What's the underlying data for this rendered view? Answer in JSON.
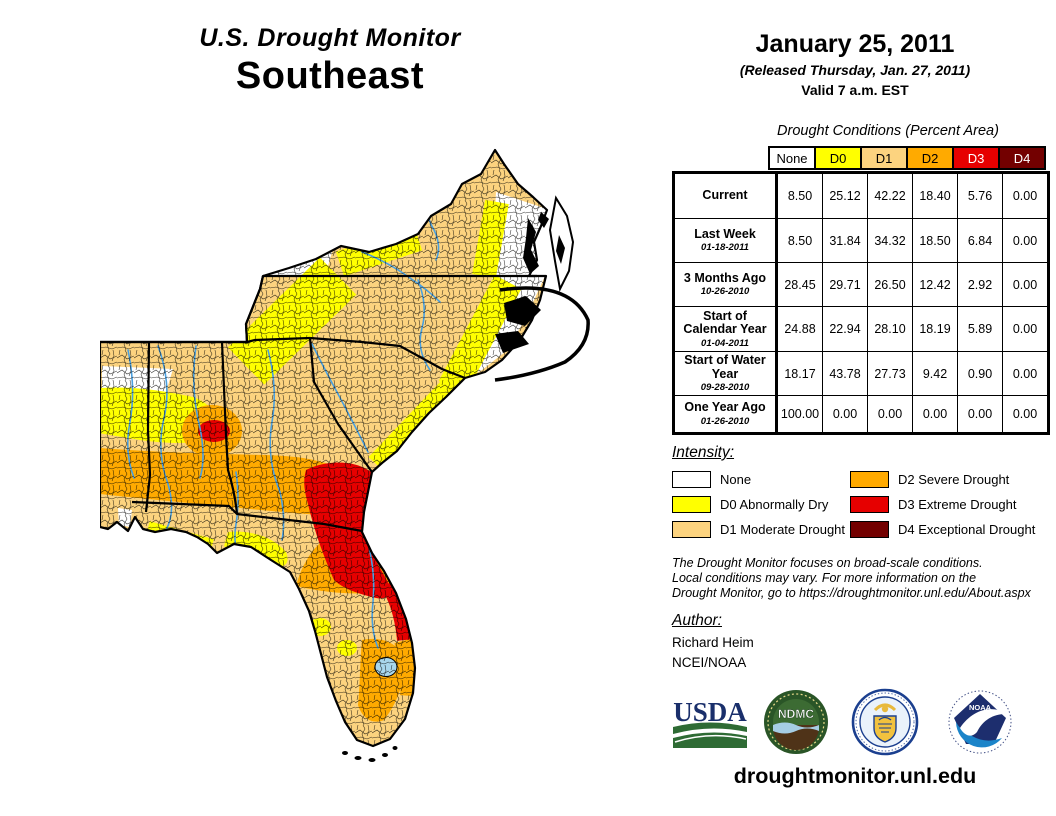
{
  "title_block": {
    "title": "U.S. Drought Monitor",
    "region": "Southeast"
  },
  "date_block": {
    "date": "January 25, 2011",
    "released": "(Released Thursday, Jan. 27, 2011)",
    "valid": "Valid 7 a.m. EST"
  },
  "table": {
    "title": "Drought Conditions (Percent Area)",
    "columns": [
      {
        "label": "None",
        "key": "none",
        "text_color": "#000000"
      },
      {
        "label": "D0",
        "key": "d0",
        "text_color": "#000000"
      },
      {
        "label": "D1",
        "key": "d1",
        "text_color": "#000000"
      },
      {
        "label": "D2",
        "key": "d2",
        "text_color": "#000000"
      },
      {
        "label": "D3",
        "key": "d3",
        "text_color": "#FFFFFF"
      },
      {
        "label": "D4",
        "key": "d4",
        "text_color": "#FFFFFF"
      }
    ],
    "rows": [
      {
        "label": "Current",
        "sublabel": "",
        "values": [
          "8.50",
          "25.12",
          "42.22",
          "18.40",
          "5.76",
          "0.00"
        ]
      },
      {
        "label": "Last Week",
        "sublabel": "01-18-2011",
        "values": [
          "8.50",
          "31.84",
          "34.32",
          "18.50",
          "6.84",
          "0.00"
        ]
      },
      {
        "label": "3 Months Ago",
        "sublabel": "10-26-2010",
        "values": [
          "28.45",
          "29.71",
          "26.50",
          "12.42",
          "2.92",
          "0.00"
        ]
      },
      {
        "label": "Start of Calendar Year",
        "sublabel": "01-04-2011",
        "values": [
          "24.88",
          "22.94",
          "28.10",
          "18.19",
          "5.89",
          "0.00"
        ]
      },
      {
        "label": "Start of Water Year",
        "sublabel": "09-28-2010",
        "values": [
          "18.17",
          "43.78",
          "27.73",
          "9.42",
          "0.90",
          "0.00"
        ]
      },
      {
        "label": "One Year Ago",
        "sublabel": "01-26-2010",
        "values": [
          "100.00",
          "0.00",
          "0.00",
          "0.00",
          "0.00",
          "0.00"
        ]
      }
    ]
  },
  "legend": {
    "title": "Intensity:",
    "items": [
      {
        "label": "None",
        "key": "none"
      },
      {
        "label": "D0 Abnormally Dry",
        "key": "d0"
      },
      {
        "label": "D1 Moderate Drought",
        "key": "d1"
      },
      {
        "label": "D2 Severe Drought",
        "key": "d2"
      },
      {
        "label": "D3 Extreme Drought",
        "key": "d3"
      },
      {
        "label": "D4 Exceptional Drought",
        "key": "d4"
      }
    ]
  },
  "disclaimer": {
    "lines": [
      "The Drought Monitor focuses on broad-scale conditions.",
      "Local conditions may vary. For more information on the",
      "Drought Monitor, go to https://droughtmonitor.unl.edu/About.aspx"
    ]
  },
  "author": {
    "title": "Author:",
    "name": "Richard Heim",
    "org": "NCEI/NOAA"
  },
  "footer": {
    "url": "droughtmonitor.unl.edu",
    "usda_text": "USDA",
    "ndmc_text": "NDMC",
    "noaa_text": "NOAA"
  },
  "colors": {
    "none": "#FFFFFF",
    "d0": "#FFFF00",
    "d1": "#FCD37F",
    "d2": "#FFAA00",
    "d3": "#E60000",
    "d4": "#730000",
    "river": "#4AA0E0",
    "lake": "#A9D7EC",
    "usda_blue": "#1A2F6B",
    "usda_green": "#2E6B34",
    "ndmc_green": "#2A5527",
    "doc_navy": "#1B3F8F",
    "noaa_navy": "#1D2E6E",
    "noaa_blue": "#1B84C9"
  }
}
